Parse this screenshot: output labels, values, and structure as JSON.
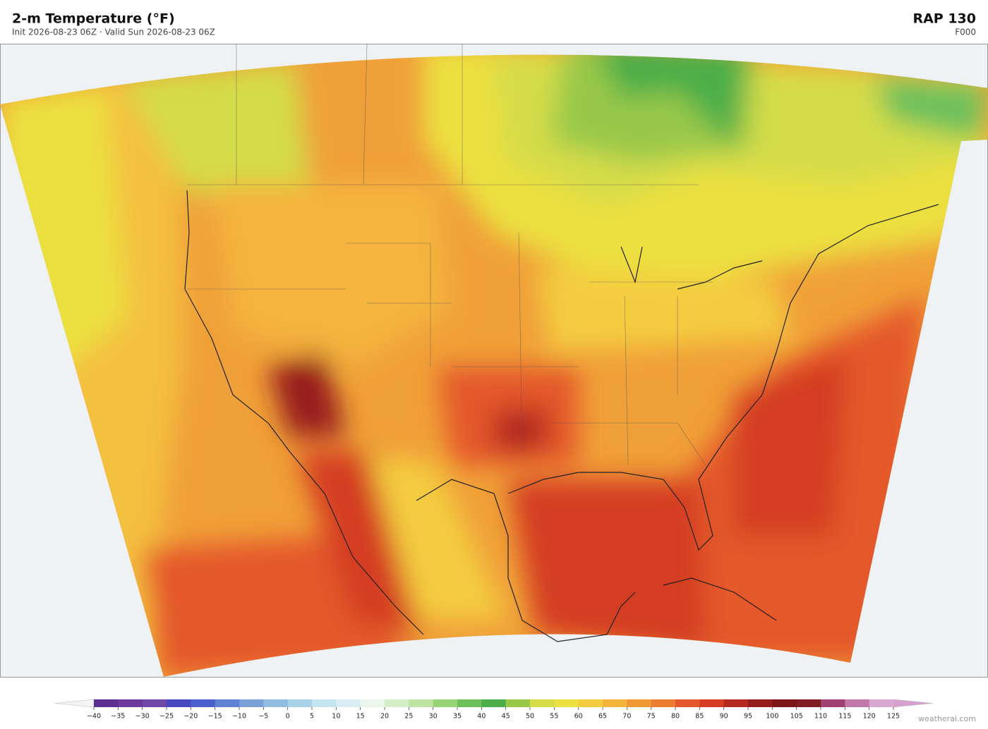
{
  "header": {
    "title": "2-m Temperature  (°F)",
    "subtitle": "Init 2026-08-23 06Z   ·   Valid Sun 2026-08-23 06Z",
    "model": "RAP  130",
    "forecast_hour": "F000"
  },
  "colorbar": {
    "ticks": [
      {
        "value": -40,
        "label": "−40"
      },
      {
        "value": -35,
        "label": "−35"
      },
      {
        "value": -30,
        "label": "−30"
      },
      {
        "value": -25,
        "label": "−25"
      },
      {
        "value": -20,
        "label": "−20"
      },
      {
        "value": -15,
        "label": "−15"
      },
      {
        "value": -10,
        "label": "−10"
      },
      {
        "value": -5,
        "label": "−5"
      },
      0,
      5,
      10,
      15,
      20,
      25,
      30,
      35,
      40,
      45,
      50,
      55,
      60,
      65,
      70,
      75,
      80,
      85,
      90,
      95,
      100,
      105,
      110,
      115,
      120,
      125
    ],
    "colors": [
      "#5b2e8f",
      "#6d3a9c",
      "#7048a8",
      "#4848c0",
      "#4a60cc",
      "#5f82d4",
      "#78a2d8",
      "#90bde0",
      "#a8d2e8",
      "#c4e4f0",
      "#d8eef4",
      "#e8f6ec",
      "#d4efc8",
      "#bde4a0",
      "#98d478",
      "#6cc05c",
      "#4cae48",
      "#98c848",
      "#d4dc48",
      "#ece040",
      "#f4cc40",
      "#f4b43c",
      "#f09834",
      "#ec7c30",
      "#e4582c",
      "#d43c24",
      "#b42820",
      "#961c1c",
      "#7c1418",
      "#801c24",
      "#a04070",
      "#c078a8",
      "#d8a8d0"
    ],
    "under_color": "#f4f4f4",
    "over_color": "#d8a0d0"
  },
  "footer": {
    "credit": "weatherai.com"
  }
}
